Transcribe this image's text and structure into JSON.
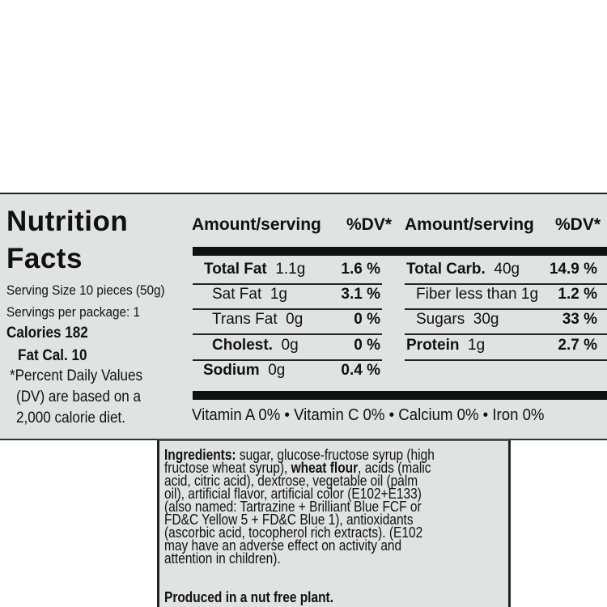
{
  "title": [
    "Nutrition",
    "Facts"
  ],
  "serving_size": "Serving Size 10 pieces (50g)",
  "servings_per_package": "Servings per package: 1",
  "calories": "Calories 182",
  "fat_calories": "Fat Cal. 10",
  "dv_note": [
    "*Percent Daily Values",
    "(DV) are based on a",
    "2,000 calorie diet."
  ],
  "headers": {
    "amount": "Amount/serving",
    "dv": "%DV*"
  },
  "left_rows": [
    {
      "name": "Total Fat",
      "amount": "1.1g",
      "dv": "1.6 %",
      "bold": true
    },
    {
      "name": "Sat Fat",
      "amount": "1g",
      "dv": "3.1 %",
      "bold": false
    },
    {
      "name": "Trans Fat",
      "amount": "0g",
      "dv": "0 %",
      "bold": false
    },
    {
      "name": "Cholest.",
      "amount": "0g",
      "dv": "0 %",
      "bold": true
    },
    {
      "name": "Sodium",
      "amount": "0g",
      "dv": "0.4 %",
      "bold": true
    }
  ],
  "right_rows": [
    {
      "name": "Total Carb.",
      "amount": "40g",
      "dv": "14.9 %",
      "bold": true
    },
    {
      "name": "Fiber less than",
      "amount": "1g",
      "dv": "1.2 %",
      "bold": false
    },
    {
      "name": "Sugars",
      "amount": "30g",
      "dv": "33 %",
      "bold": false
    },
    {
      "name": "Protein",
      "amount": "1g",
      "dv": "2.7 %",
      "bold": true
    }
  ],
  "vitamins": "Vitamin A  0% • Vitamin C  0% • Calcium   0% • Iron  0%",
  "ingredients": {
    "label": "Ingredients:",
    "line1": " sugar, glucose-fructose syrup (high",
    "line2a": "fructose wheat syrup), ",
    "line2b": "wheat flour",
    "line2c": ", acids (malic",
    "lines": [
      "acid, citric acid), dextrose, vegetable oil (palm",
      "oil), artificial flavor, artificial color (E102+E133)",
      "(also named: Tartrazine + Brilliant Blue FCF or",
      "FD&C Yellow 5 + FD&C Blue 1), antioxidants",
      "(ascorbic acid, tocopherol rich extracts).  (E102",
      "may have an adverse effect on activity and",
      "attention in children)."
    ],
    "footer": "Produced in a nut free plant."
  }
}
